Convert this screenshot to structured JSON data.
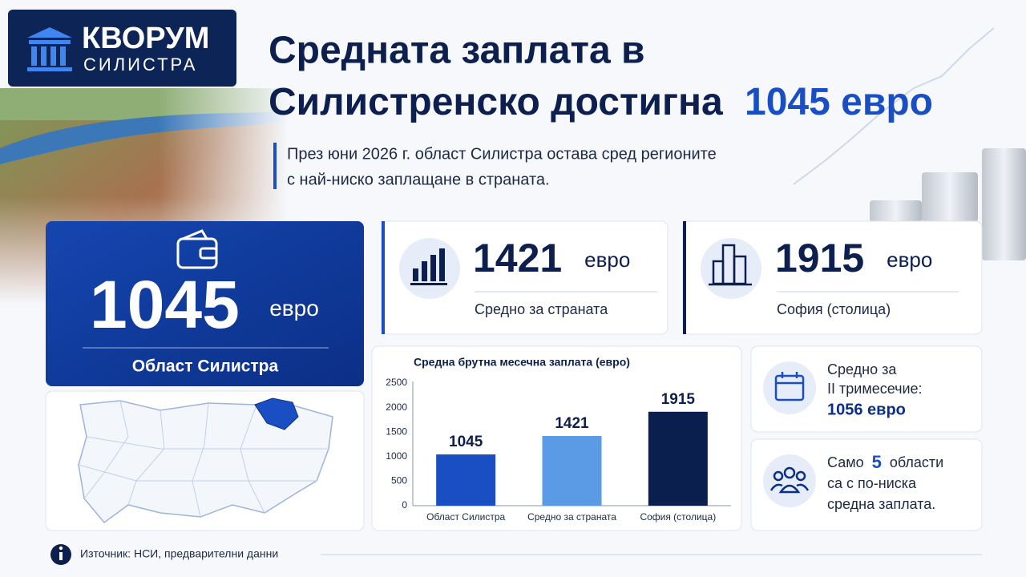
{
  "logo": {
    "name": "КВОРУМ",
    "city": "СИЛИСТРА"
  },
  "headline": {
    "line1": "Средната заплата в",
    "line2": "Силистренско достигна",
    "highlight": "1045 евро"
  },
  "subtitle": {
    "line1": "През юни 2026 г. област Силистра остава сред регионите",
    "line2": "с най-ниско заплащане в страната."
  },
  "main_card": {
    "value": 1045,
    "unit": "евро",
    "label": "Област Силистра"
  },
  "cards": [
    {
      "value": 1421,
      "unit": "евро",
      "label": "Средно за страната"
    },
    {
      "value": 1915,
      "unit": "евро",
      "label": "София (столица)"
    }
  ],
  "chart_data": {
    "type": "bar",
    "title": "Средна брутна месечна заплата (евро)",
    "categories": [
      "Област Силистра",
      "Средно за страната",
      "София (столица)"
    ],
    "values": [
      1045,
      1421,
      1915
    ],
    "colors": [
      "#1a4fc4",
      "#5b9be6",
      "#0b1f4f"
    ],
    "ylim": [
      0,
      2500
    ],
    "yticks": [
      0,
      500,
      1000,
      1500,
      2000,
      2500
    ]
  },
  "notes": [
    {
      "line1": "Средно за",
      "line2": "II тримесечие:",
      "highlight": "1056 евро"
    },
    {
      "prefix": "Само",
      "count": 5,
      "suffix": "области",
      "line2": "са с по-ниска",
      "line3": "средна заплата."
    }
  ],
  "source": "Източник: НСИ, предварителни данни"
}
